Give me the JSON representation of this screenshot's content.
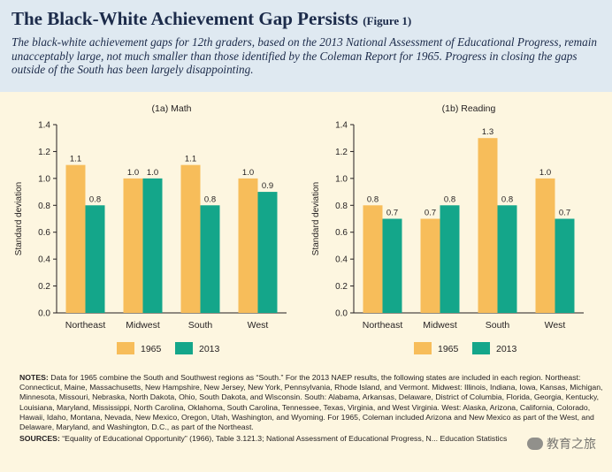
{
  "header": {
    "title": "The Black-White Achievement Gap Persists",
    "figure_label": "(Figure 1)",
    "subtitle": "The black-white achievement gaps for 12th graders, based on the 2013 National Assessment of Educational Progress, remain unacceptably large, not much smaller than those identified by the Coleman Report for 1965. Progress in closing the gaps outside of the South has been largely disappointing."
  },
  "colors": {
    "series_1965": "#f7bd5a",
    "series_2013": "#14a68a",
    "header_bg": "#dfe9f1",
    "page_bg": "#fdf6e0"
  },
  "chart_data": [
    {
      "type": "bar",
      "title": "(1a) Math",
      "ylabel": "Standard deviation",
      "xlabel": "",
      "ylim": [
        0,
        1.4
      ],
      "yticks": [
        "0.0",
        "0.2",
        "0.4",
        "0.6",
        "0.8",
        "1.0",
        "1.2",
        "1.4"
      ],
      "grid": false,
      "legend_position": "bottom-center",
      "categories": [
        "Northeast",
        "Midwest",
        "South",
        "West"
      ],
      "series": [
        {
          "name": "1965",
          "values": [
            1.1,
            1.0,
            1.1,
            1.0
          ],
          "labels": [
            "1.1",
            "1.0",
            "1.1",
            "1.0"
          ]
        },
        {
          "name": "2013",
          "values": [
            0.8,
            1.0,
            0.8,
            0.9
          ],
          "labels": [
            "0.8",
            "1.0",
            "0.8",
            "0.9"
          ]
        }
      ]
    },
    {
      "type": "bar",
      "title": "(1b) Reading",
      "ylabel": "Standard deviation",
      "xlabel": "",
      "ylim": [
        0,
        1.4
      ],
      "yticks": [
        "0.0",
        "0.2",
        "0.4",
        "0.6",
        "0.8",
        "1.0",
        "1.2",
        "1.4"
      ],
      "grid": false,
      "legend_position": "bottom-center",
      "categories": [
        "Northeast",
        "Midwest",
        "South",
        "West"
      ],
      "series": [
        {
          "name": "1965",
          "values": [
            0.8,
            0.7,
            1.3,
            1.0
          ],
          "labels": [
            "0.8",
            "0.7",
            "1.3",
            "1.0"
          ]
        },
        {
          "name": "2013",
          "values": [
            0.7,
            0.8,
            0.8,
            0.7
          ],
          "labels": [
            "0.7",
            "0.8",
            "0.8",
            "0.7"
          ]
        }
      ]
    }
  ],
  "notes": {
    "notes_label": "NOTES:",
    "notes_text": "Data for 1965 combine the South and Southwest regions as “South.” For the 2013 NAEP results, the following states are included in each region. Northeast: Connecticut, Maine, Massachusetts, New Hampshire, New Jersey, New York, Pennsylvania, Rhode Island, and Vermont. Midwest: Illinois, Indiana, Iowa, Kansas, Michigan, Minnesota, Missouri, Nebraska, North Dakota, Ohio, South Dakota, and Wisconsin. South: Alabama, Arkansas, Delaware, District of Columbia, Florida, Georgia, Kentucky, Louisiana, Maryland, Mississippi, North Carolina, Oklahoma, South Carolina, Tennessee, Texas, Virginia, and West Virginia. West: Alaska, Arizona, California, Colorado, Hawaii, Idaho, Montana, Nevada, New Mexico, Oregon, Utah, Washington, and Wyoming. For 1965, Coleman included Arizona and New Mexico as part of the West, and Delaware, Maryland, and Washington, D.C., as part of the Northeast.",
    "sources_label": "SOURCES:",
    "sources_text": "“Equality of Educational Opportunity” (1966), Table 3.121.3; National Assessment of Educational Progress, N... Education Statistics"
  },
  "watermark": {
    "text": "教育之旅",
    "icon": "wechat-icon"
  }
}
